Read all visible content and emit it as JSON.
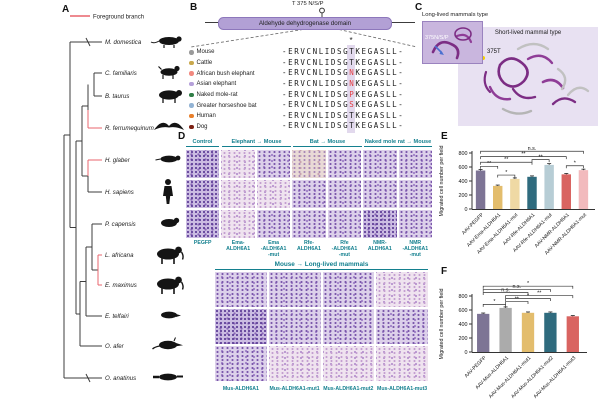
{
  "panel_labels": {
    "a": "A",
    "b": "B",
    "c": "C",
    "d": "D",
    "e": "E",
    "f": "F"
  },
  "panels": {
    "a": {
      "legend": {
        "label": "Foreground branch"
      },
      "foreground_color": "#e8646c",
      "species": [
        {
          "name": "M. domestica",
          "foreground": false
        },
        {
          "name": "C. familiaris",
          "foreground": false
        },
        {
          "name": "B. taurus",
          "foreground": false
        },
        {
          "name": "R. ferrumequinum",
          "foreground": true
        },
        {
          "name": "H. glaber",
          "foreground": true
        },
        {
          "name": "H. sapiens",
          "foreground": false
        },
        {
          "name": "P. capensis",
          "foreground": false
        },
        {
          "name": "L. africana",
          "foreground": true
        },
        {
          "name": "E. maximus",
          "foreground": true
        },
        {
          "name": "E. telfairi",
          "foreground": false
        },
        {
          "name": "O. afer",
          "foreground": false
        },
        {
          "name": "O. anatinus",
          "foreground": false
        }
      ]
    },
    "b": {
      "domain_label": "Aldehyde dehydrogenase domain",
      "site_label": "T 375 N/S/P",
      "column_marker": "*",
      "alignment": [
        {
          "species": "Mouse",
          "dot_color": "#9a9a9a",
          "pre": "-ERVCNLIDSG",
          "variant": "T",
          "post": "KEGASLL-",
          "variant_color": "#1c1c1c"
        },
        {
          "species": "Cattle",
          "dot_color": "#c9a84c",
          "pre": "-ERVCNLIDSG",
          "variant": "T",
          "post": "KEGASLL-",
          "variant_color": "#1c1c1c"
        },
        {
          "species": "African bush elephant",
          "dot_color": "#f2897f",
          "pre": "-ERVCNLIDSG",
          "variant": "N",
          "post": "KEGASLL-",
          "variant_color": "#e23b41"
        },
        {
          "species": "Asian elephant",
          "dot_color": "#b5a0da",
          "pre": "-ERVCNLIDSG",
          "variant": "N",
          "post": "KEGASLL-",
          "variant_color": "#e23b41"
        },
        {
          "species": "Naked mole-rat",
          "dot_color": "#2f7d46",
          "pre": "-ERVCNLIDSG",
          "variant": "P",
          "post": "KEGASLL-",
          "variant_color": "#e23b41"
        },
        {
          "species": "Greater horseshoe bat",
          "dot_color": "#92b3d4",
          "pre": "-ERVCNLIDSG",
          "variant": "S",
          "post": "KEGASLL-",
          "variant_color": "#e23b41"
        },
        {
          "species": "Human",
          "dot_color": "#e87f2b",
          "pre": "-ERVCNLIDSG",
          "variant": "T",
          "post": "KEGASLL-",
          "variant_color": "#1c1c1c"
        },
        {
          "species": "Dog",
          "dot_color": "#7c2114",
          "pre": "-ERVCNLIDSG",
          "variant": "T",
          "post": "KEGASLL-",
          "variant_color": "#1c1c1c"
        }
      ]
    },
    "c": {
      "inset_title": "Long-lived mammals type",
      "main_title": "Short-lived mammal type",
      "inset_site_label": "375N/S/P",
      "main_site_label": "375T"
    },
    "d": {
      "top_groups": [
        "Control",
        "Elephant → Mouse",
        "Bat → Mouse",
        "Naked mole rat → Mouse"
      ],
      "top_col_labels": [
        "PEGFP",
        "Ema-ALDH6A1",
        "Ema\n-ALDH6A1\n-mut",
        "Rfe-ALDH6A1",
        "Rfe\n-ALDH6A1\n-mut",
        "NMR-ALDH6A1",
        "NMR\n-ALDH6A1\n-mut"
      ],
      "bottom_header": "Mouse → Long-lived mammals",
      "bottom_col_labels": [
        "Mus-ALDH6A1",
        "Mus-ALDH6A1-mut1",
        "Mus-ALDH6A1-mut2",
        "Mus-ALDH6A1-mut3"
      ]
    }
  },
  "chart_data": [
    {
      "panel": "E",
      "type": "bar",
      "ylabel": "Migrated cell number per field",
      "ylim": [
        0,
        800
      ],
      "yticks": [
        0,
        200,
        400,
        600,
        800
      ],
      "categories": [
        "AAV-PEGFP",
        "AAV-Ema-ALDH6A1",
        "AAV-Ema-ALDH6A1-mut",
        "AAV-Rfe-ALDH6A1",
        "AAV-Rfe-ALDH6A1-mut",
        "AAV-NMR-ALDH6A1",
        "AAV-NMR-ALDH6A1-mut"
      ],
      "values": [
        550,
        330,
        430,
        460,
        630,
        495,
        555
      ],
      "errors": [
        15,
        12,
        14,
        13,
        18,
        12,
        14
      ],
      "bar_colors": [
        "#7d7495",
        "#e3bd6d",
        "#efd9a4",
        "#2f6b7e",
        "#b7cdd5",
        "#d96461",
        "#f2babd"
      ],
      "significance": [
        {
          "a": 0,
          "b": 1,
          "y": 610,
          "label": "**"
        },
        {
          "a": 1,
          "b": 2,
          "y": 485,
          "label": "*"
        },
        {
          "a": 0,
          "b": 3,
          "y": 668,
          "label": "**"
        },
        {
          "a": 3,
          "b": 4,
          "y": 705,
          "label": "**"
        },
        {
          "a": 0,
          "b": 5,
          "y": 748,
          "label": "**"
        },
        {
          "a": 5,
          "b": 6,
          "y": 618,
          "label": "*"
        },
        {
          "a": 0,
          "b": 6,
          "y": 825,
          "label": "n.s."
        }
      ]
    },
    {
      "panel": "F",
      "type": "bar",
      "ylabel": "Migrated cell number per field",
      "ylim": [
        0,
        800
      ],
      "yticks": [
        0,
        200,
        400,
        600,
        800
      ],
      "categories": [
        "AAV-PEGFP",
        "AAV-Mus-ALDH6A1",
        "AAV-Mus-ALDH6A1-mut1",
        "AAV-Mus-ALDH6A1-mut2",
        "AAV-Mus-ALDH6A1-mut3"
      ],
      "values": [
        545,
        630,
        560,
        560,
        510
      ],
      "errors": [
        12,
        14,
        12,
        12,
        10
      ],
      "bar_colors": [
        "#7d7495",
        "#ababab",
        "#e3bd6d",
        "#2f6b7e",
        "#d96461"
      ],
      "significance": [
        {
          "a": 0,
          "b": 1,
          "y": 680,
          "label": "*"
        },
        {
          "a": 1,
          "b": 2,
          "y": 722,
          "label": "**"
        },
        {
          "a": 1,
          "b": 3,
          "y": 764,
          "label": "*"
        },
        {
          "a": 1,
          "b": 4,
          "y": 806,
          "label": "**"
        },
        {
          "a": 0,
          "b": 2,
          "y": 850,
          "label": "n.s."
        },
        {
          "a": 0,
          "b": 3,
          "y": 894,
          "label": "n.s."
        },
        {
          "a": 0,
          "b": 4,
          "y": 940,
          "label": "*"
        }
      ]
    }
  ]
}
